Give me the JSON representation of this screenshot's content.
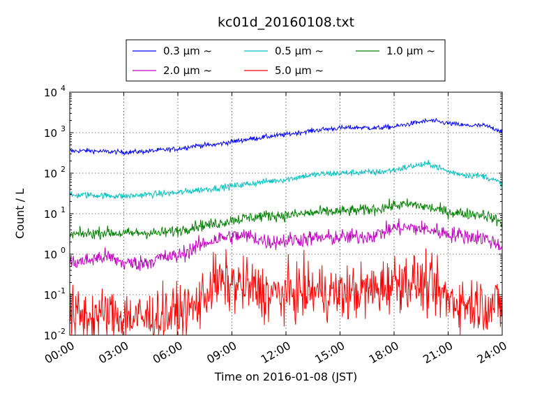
{
  "chart_data": {
    "type": "line",
    "title": "kc01d_20160108.txt",
    "xlabel": "Time on 2016-01-08 (JST)",
    "ylabel": "Count / L",
    "y_scale": "log",
    "ylim": [
      0.01,
      10000
    ],
    "xlim": [
      "00:00",
      "24:00"
    ],
    "x_ticks": [
      "00:00",
      "03:00",
      "06:00",
      "09:00",
      "12:00",
      "15:00",
      "18:00",
      "21:00",
      "24:00"
    ],
    "y_ticks": [
      {
        "base": "10",
        "exp": "-2",
        "value": 0.01
      },
      {
        "base": "10",
        "exp": "-1",
        "value": 0.1
      },
      {
        "base": "10",
        "exp": "0",
        "value": 1
      },
      {
        "base": "10",
        "exp": "1",
        "value": 10
      },
      {
        "base": "10",
        "exp": "2",
        "value": 100
      },
      {
        "base": "10",
        "exp": "3",
        "value": 1000
      },
      {
        "base": "10",
        "exp": "4",
        "value": 10000
      }
    ],
    "grid": true,
    "legend_position": "top-center",
    "x": [
      "00:00",
      "01:00",
      "02:00",
      "03:00",
      "04:00",
      "05:00",
      "06:00",
      "07:00",
      "08:00",
      "09:00",
      "10:00",
      "11:00",
      "12:00",
      "13:00",
      "14:00",
      "15:00",
      "16:00",
      "17:00",
      "18:00",
      "19:00",
      "20:00",
      "21:00",
      "22:00",
      "23:00",
      "24:00"
    ],
    "series": [
      {
        "name": "0.3 μm ~",
        "color": "#0000ff",
        "noise": 0.03,
        "values": [
          350,
          360,
          340,
          330,
          340,
          370,
          400,
          480,
          500,
          600,
          700,
          800,
          900,
          1050,
          1200,
          1300,
          1350,
          1300,
          1400,
          1700,
          2000,
          1700,
          1500,
          1500,
          1100
        ]
      },
      {
        "name": "0.5 μm ~",
        "color": "#00bfbf",
        "noise": 0.04,
        "values": [
          28,
          29,
          28,
          27,
          29,
          31,
          33,
          38,
          42,
          48,
          55,
          63,
          70,
          85,
          95,
          100,
          105,
          105,
          120,
          150,
          170,
          110,
          90,
          85,
          55
        ]
      },
      {
        "name": "1.0 μm ~",
        "color": "#008000",
        "noise": 0.07,
        "values": [
          3.0,
          3.2,
          3.5,
          3.2,
          3.4,
          3.3,
          3.8,
          5.0,
          5.5,
          7.0,
          8.0,
          9.0,
          9.0,
          10,
          11,
          11.5,
          12,
          13,
          16,
          17,
          14,
          11,
          10,
          9.5,
          6
        ]
      },
      {
        "name": "2.0 μm ~",
        "color": "#bf00bf",
        "noise": 0.1,
        "values": [
          0.6,
          0.7,
          0.9,
          0.6,
          0.6,
          0.8,
          0.9,
          1.5,
          2.3,
          2.8,
          2.8,
          2.0,
          2.2,
          2.4,
          2.5,
          2.6,
          2.7,
          3.0,
          4.5,
          4.5,
          4.0,
          3.2,
          2.8,
          2.5,
          1.6
        ]
      },
      {
        "name": "5.0 μm ~",
        "color": "#ff0000",
        "noise": 0.35,
        "values": [
          0.03,
          0.03,
          0.03,
          0.03,
          0.025,
          0.03,
          0.035,
          0.05,
          0.2,
          0.18,
          0.15,
          0.1,
          0.1,
          0.12,
          0.12,
          0.1,
          0.12,
          0.13,
          0.22,
          0.22,
          0.15,
          0.08,
          0.06,
          0.06,
          0.05
        ]
      }
    ]
  }
}
